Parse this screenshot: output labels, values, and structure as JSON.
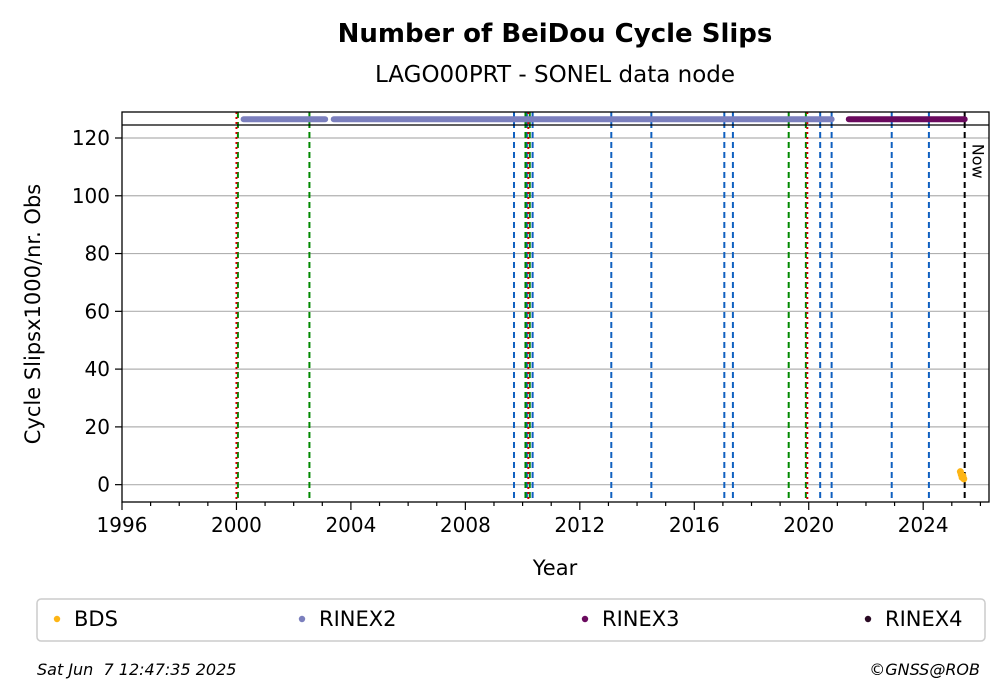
{
  "chart_data": {
    "type": "scatter",
    "title": "Number of BeiDou Cycle Slips",
    "subtitle": "LAGO00PRT - SONEL data node",
    "xlabel": "Year",
    "ylabel": "Cycle Slipsx1000/nr. Obs",
    "xlim": [
      1996,
      2026.3
    ],
    "ylim": [
      -6,
      129
    ],
    "xticks": [
      1996,
      2000,
      2004,
      2008,
      2012,
      2016,
      2020,
      2024
    ],
    "yticks": [
      0,
      20,
      40,
      60,
      80,
      100,
      120
    ],
    "grid": "horizontal",
    "legend_position": "bottom",
    "top_line_y": 124.5,
    "colors": {
      "bds": "#fdb515",
      "rinex2": "#7b7fbd",
      "rinex3": "#6a0a5e",
      "rinex4": "#2a0a24",
      "red_events": "#d40000",
      "green_events": "#008800",
      "blue_events": "#1060c0",
      "now_line": "#000000",
      "grid": "#b0b0b0"
    },
    "series": [
      {
        "name": "BDS",
        "color": "#fdb515",
        "points": [
          [
            2025.3,
            4.5
          ],
          [
            2025.33,
            3.5
          ],
          [
            2025.36,
            2.5
          ],
          [
            2025.39,
            3.0
          ],
          [
            2025.42,
            2.0
          ]
        ]
      },
      {
        "name": "RINEX2",
        "color": "#7b7fbd",
        "bars": [
          [
            2000.25,
            2003.1
          ],
          [
            2003.4,
            2020.8
          ]
        ],
        "y": 126.5
      },
      {
        "name": "RINEX3",
        "color": "#6a0a5e",
        "bars": [
          [
            2021.4,
            2025.45
          ]
        ],
        "y": 126.5
      },
      {
        "name": "RINEX4",
        "color": "#2a0a24",
        "bars": []
      }
    ],
    "vertical_lines": {
      "red": [
        2000.0,
        2010.2,
        2019.95
      ],
      "green": [
        2000.05,
        2002.55,
        2010.1,
        2010.25,
        2019.3,
        2019.9
      ],
      "blue": [
        2009.7,
        2010.15,
        2010.35,
        2013.1,
        2014.5,
        2017.05,
        2017.35,
        2020.4,
        2020.8,
        2022.9,
        2024.2
      ],
      "now": 2025.45
    },
    "annotations": [
      {
        "text": "Now",
        "x": 2025.45,
        "y": 118
      }
    ]
  },
  "footer": {
    "timestamp": "Sat Jun  7 12:47:35 2025",
    "credit": "©GNSS@ROB"
  }
}
